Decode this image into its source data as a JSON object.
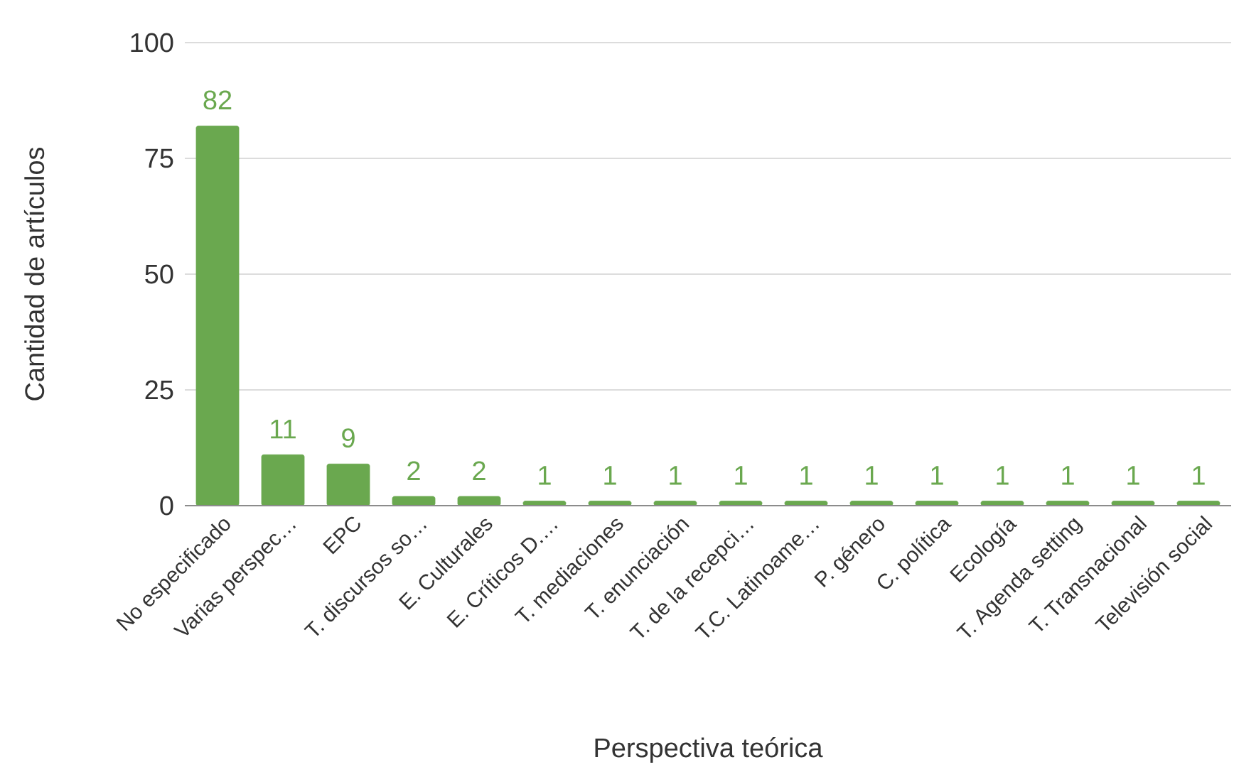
{
  "chart_data": {
    "type": "bar",
    "xlabel": "Perspectiva teórica",
    "ylabel": "Cantidad de artículos",
    "categories": [
      "No especificado",
      "Varias perspec…",
      "EPC",
      "T. discursos so…",
      "E. Culturales",
      "E. Críticos D.…",
      "T. mediaciones",
      "T. enunciación",
      "T. de la recepci…",
      "T.C. Latinoame…",
      "P. género",
      "C. política",
      "Ecología",
      "T. Agenda setting",
      "T. Transnacional",
      "Televisión social"
    ],
    "values": [
      82,
      11,
      9,
      2,
      2,
      1,
      1,
      1,
      1,
      1,
      1,
      1,
      1,
      1,
      1,
      1
    ],
    "color": "#6aa84f",
    "data_labels": true,
    "grid": "y",
    "ylim": [
      0,
      100
    ],
    "yticks": [
      0,
      25,
      50,
      75,
      100
    ]
  }
}
